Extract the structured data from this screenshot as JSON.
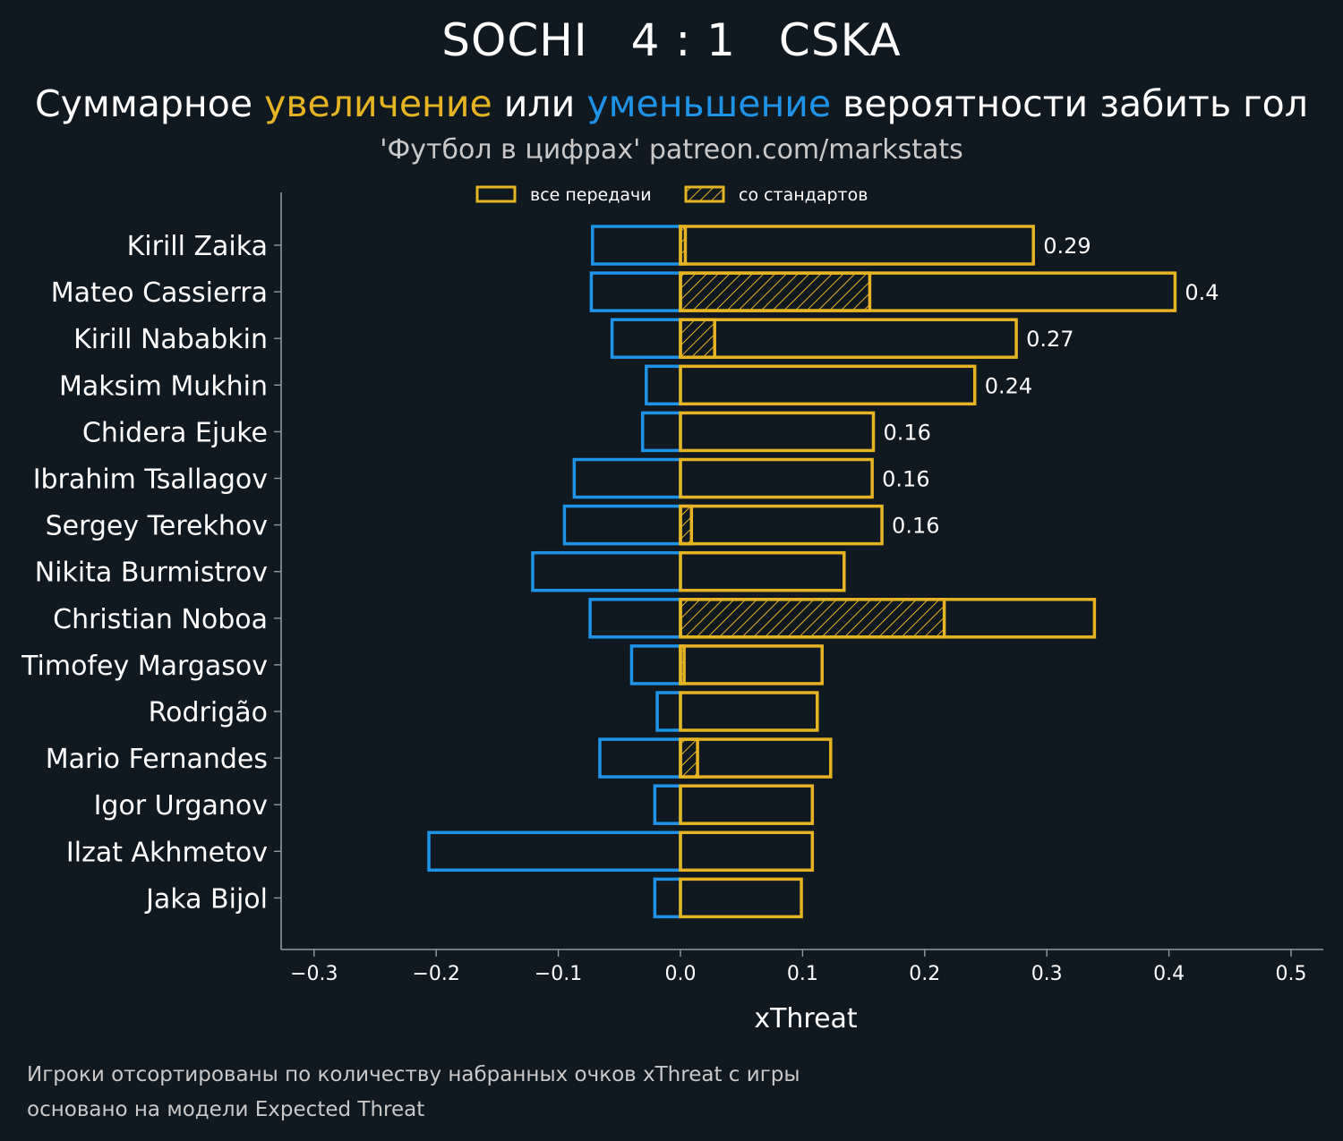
{
  "header": {
    "home_team": "SOCHI",
    "score": "4 : 1",
    "away_team": "CSKA",
    "subtitle_part1": "Суммарное ",
    "subtitle_increase": "увеличение",
    "subtitle_part2": " или ",
    "subtitle_decrease": "уменьшение",
    "subtitle_part3": " вероятности забить гол",
    "source": "'Футбол в цифрах' patreon.com/markstats"
  },
  "footnotes": [
    "Игроки отсортированы по количеству набранных очков xThreat с игры",
    "основано на модели Expected Threat"
  ],
  "colors": {
    "background": "#101820",
    "positive": "#e6b422",
    "negative": "#1f93e8",
    "axis": "#8a9aa3",
    "text": "#ffffff",
    "muted": "#c9c9c9"
  },
  "chart_data": {
    "type": "bar",
    "orientation": "horizontal",
    "xlabel": "xThreat",
    "xlim": [
      -0.33,
      0.525
    ],
    "xticks": [
      -0.3,
      -0.2,
      -0.1,
      0.0,
      0.1,
      0.2,
      0.3,
      0.4,
      0.5
    ],
    "xtick_labels": [
      "−0.3",
      "−0.2",
      "−0.1",
      "0.0",
      "0.1",
      "0.2",
      "0.3",
      "0.4",
      "0.5"
    ],
    "legend": {
      "position": "top-center",
      "entries": [
        "все передачи",
        "со стандартов"
      ]
    },
    "categories": [
      "Kirill Zaika",
      "Mateo Cassierra",
      "Kirill Nababkin",
      "Maksim Mukhin",
      "Chidera Ejuke",
      "Ibrahim Tsallagov",
      "Sergey Terekhov",
      "Nikita Burmistrov",
      "Christian Noboa",
      "Timofey Margasov",
      "Rodrigão",
      "Mario Fernandes",
      "Igor Urganov",
      "Ilzat Akhmetov",
      "Jaka Bijol"
    ],
    "series": [
      {
        "name": "все передачи (увеличение)",
        "values": [
          0.289,
          0.405,
          0.275,
          0.241,
          0.158,
          0.157,
          0.165,
          0.134,
          0.339,
          0.116,
          0.112,
          0.123,
          0.108,
          0.108,
          0.099
        ]
      },
      {
        "name": "все передачи (уменьшение)",
        "values": [
          -0.072,
          -0.073,
          -0.056,
          -0.028,
          -0.031,
          -0.087,
          -0.095,
          -0.121,
          -0.074,
          -0.04,
          -0.019,
          -0.066,
          -0.021,
          -0.206,
          -0.021
        ]
      },
      {
        "name": "со стандартов",
        "values": [
          0.004,
          0.155,
          0.028,
          0.0,
          0.0,
          0.0,
          0.009,
          0.0,
          0.216,
          0.003,
          0.0,
          0.014,
          0.0,
          0.0,
          0.0
        ]
      }
    ],
    "data_labels": [
      "0.29",
      "0.4",
      "0.27",
      "0.24",
      "0.16",
      "0.16",
      "0.16",
      "",
      "",
      "",
      "",
      "",
      "",
      "",
      ""
    ]
  }
}
